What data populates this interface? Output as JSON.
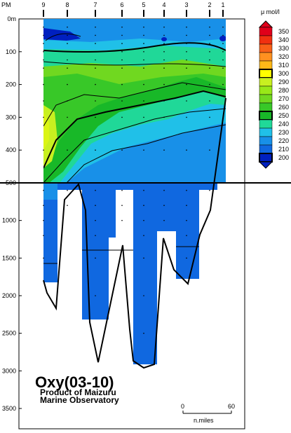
{
  "chart_data": {
    "type": "heatmap",
    "title": "Oxy(03-10)",
    "subtitle_line1": "Product of Maizuru",
    "subtitle_line2": "Marine Observatory",
    "x_axis_label": "PM",
    "stations": [
      "9",
      "8",
      "7",
      "6",
      "5",
      "4",
      "3",
      "2",
      "1"
    ],
    "depth_ticks_upper": [
      0,
      100,
      200,
      300,
      400,
      500
    ],
    "depth_ticks_lower": [
      1000,
      1500,
      2000,
      2500,
      3000,
      3500
    ],
    "depth_tick_labels": [
      "0m",
      "100",
      "200",
      "300",
      "400",
      "500",
      "1000",
      "1500",
      "2000",
      "2500",
      "3000",
      "3500"
    ],
    "y_break_depth": 500,
    "unit": "μ mol/l",
    "colorbar_levels": [
      350,
      340,
      330,
      320,
      310,
      300,
      290,
      280,
      270,
      260,
      250,
      240,
      230,
      220,
      210,
      200
    ],
    "colorbar_colors": [
      "#e0001a",
      "#f03010",
      "#f86018",
      "#ff9020",
      "#ffb818",
      "#ffff00",
      "#c8f020",
      "#98e818",
      "#70d820",
      "#38c828",
      "#18b828",
      "#20d898",
      "#20c0e8",
      "#1890e8",
      "#1068e0",
      "#0020c0"
    ],
    "scale_bar": {
      "start": "0",
      "end": "60",
      "unit": "n.miles"
    }
  }
}
